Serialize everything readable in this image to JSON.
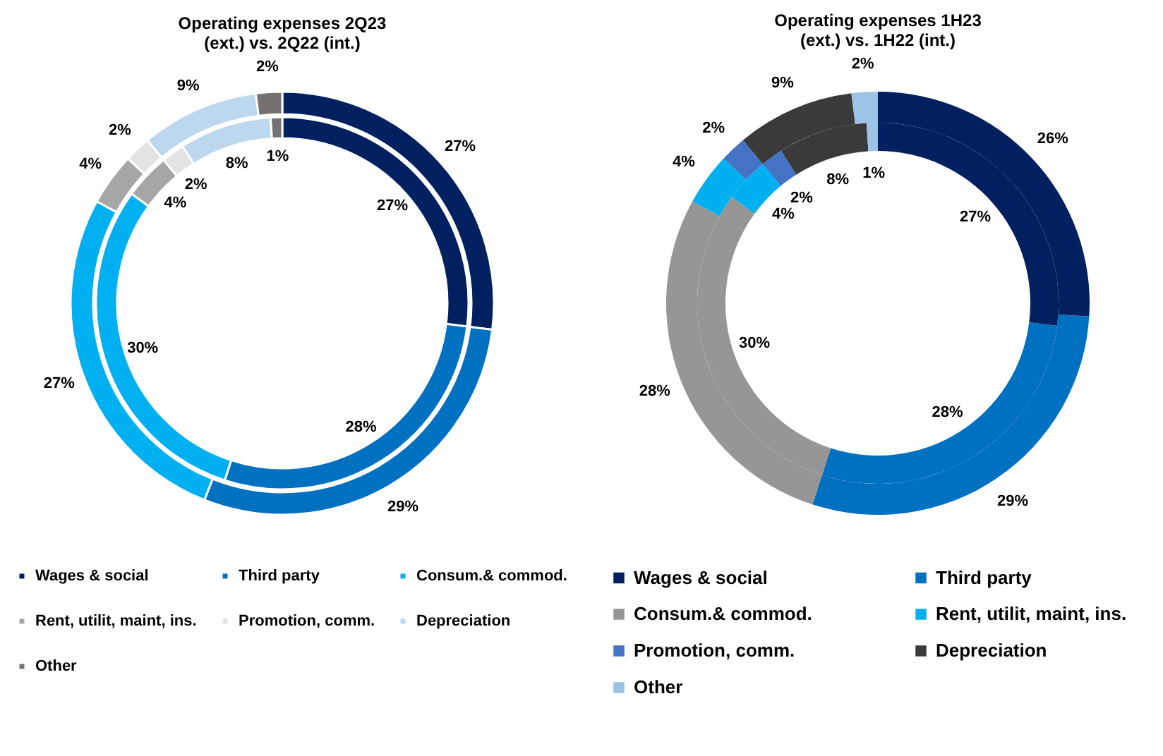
{
  "chart_data": [
    {
      "type": "donut",
      "title": "Operating expenses 2Q23 (ext.) vs. 2Q22 (int.)",
      "categories": [
        "Wages & social",
        "Third party",
        "Consum.& commod.",
        "Rent, utilit, maint, ins.",
        "Promotion, comm.",
        "Depreciation",
        "Other"
      ],
      "colors": [
        "#002060",
        "#0070c0",
        "#00b0f0",
        "#a6a6a6",
        "#e3e3e3",
        "#bdd7ee",
        "#767171"
      ],
      "legend": "bottom",
      "series": [
        {
          "values": [
            27,
            29,
            27,
            4,
            2,
            9,
            2
          ],
          "value_labels": [
            "27%",
            "29%",
            "27%",
            "4%",
            "2%",
            "9%",
            "2%"
          ]
        },
        {
          "values": [
            27,
            28,
            30,
            4,
            2,
            8,
            1
          ],
          "value_labels": [
            "27%",
            "28%",
            "30%",
            "4%",
            "2%",
            "8%",
            "1%"
          ]
        }
      ]
    },
    {
      "type": "donut",
      "title": "Operating expenses 1H23 (ext.) vs. 1H22 (int.)",
      "categories": [
        "Wages & social",
        "Third party",
        "Consum.& commod.",
        "Rent, utilit, maint, ins.",
        "Promotion, comm.",
        "Depreciation",
        "Other"
      ],
      "colors": [
        "#002060",
        "#0070c0",
        "#969696",
        "#00b0f0",
        "#4472c4",
        "#3a3a3a",
        "#9dc3e6"
      ],
      "legend": "bottom",
      "series": [
        {
          "values": [
            26,
            29,
            28,
            4,
            2,
            9,
            2
          ],
          "value_labels": [
            "26%",
            "29%",
            "28%",
            "4%",
            "2%",
            "9%",
            "2%"
          ]
        },
        {
          "values": [
            27,
            28,
            30,
            4,
            2,
            8,
            1
          ],
          "value_labels": [
            "27%",
            "28%",
            "30%",
            "4%",
            "2%",
            "8%",
            "1%"
          ]
        }
      ]
    }
  ]
}
